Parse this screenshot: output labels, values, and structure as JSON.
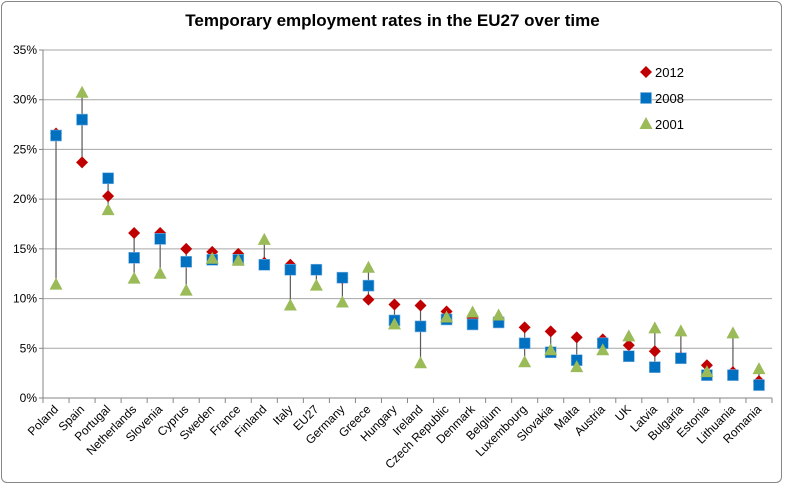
{
  "chart_data": {
    "type": "scatter",
    "title": "Temporary employment rates in the EU27 over time",
    "xlabel": "",
    "ylabel": "",
    "ylim": [
      0,
      35
    ],
    "yticks": [
      "0%",
      "5%",
      "10%",
      "15%",
      "20%",
      "25%",
      "30%",
      "35%"
    ],
    "grid": true,
    "legend_position": "right",
    "categories": [
      "Poland",
      "Spain",
      "Portugal",
      "Netherlands",
      "Slovenia",
      "Cyprus",
      "Sweden",
      "France",
      "Finland",
      "Italy",
      "EU27",
      "Germany",
      "Greece",
      "Hungary",
      "Ireland",
      "Czech Republic",
      "Denmark",
      "Belgium",
      "Luxembourg",
      "Slovakia",
      "Malta",
      "Austria",
      "UK",
      "Latvia",
      "Bulgaria",
      "Estonia",
      "Lithuania",
      "Romania"
    ],
    "series": [
      {
        "name": "2012",
        "marker": "diamond",
        "color": "#C00000",
        "values": [
          26.6,
          23.7,
          20.3,
          16.6,
          16.6,
          15.0,
          14.7,
          14.5,
          13.6,
          13.4,
          12.9,
          12.0,
          9.9,
          9.4,
          9.3,
          8.7,
          8.0,
          7.6,
          7.1,
          6.7,
          6.1,
          5.9,
          5.3,
          4.7,
          4.1,
          3.3,
          2.6,
          1.7
        ]
      },
      {
        "name": "2008",
        "marker": "square",
        "color": "#0070C0",
        "values": [
          26.4,
          28.0,
          22.1,
          14.1,
          16.0,
          13.7,
          13.9,
          13.9,
          13.4,
          12.9,
          12.9,
          12.1,
          11.3,
          7.8,
          7.2,
          7.9,
          7.4,
          7.6,
          5.5,
          4.6,
          3.8,
          5.5,
          4.2,
          3.1,
          4.0,
          2.3,
          2.3,
          1.3
        ]
      },
      {
        "name": "2001",
        "marker": "triangle",
        "color": "#9BBB59",
        "values": [
          11.4,
          30.7,
          18.9,
          12.0,
          12.5,
          10.8,
          14.0,
          13.8,
          15.9,
          9.3,
          11.3,
          9.6,
          13.1,
          7.4,
          3.5,
          8.1,
          8.6,
          8.3,
          3.6,
          4.8,
          3.1,
          4.8,
          6.2,
          7.0,
          6.7,
          2.6,
          6.5,
          2.9
        ]
      }
    ]
  }
}
